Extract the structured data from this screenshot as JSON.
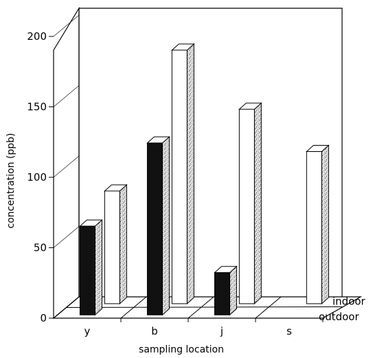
{
  "chart_data": {
    "type": "bar",
    "title": "",
    "xlabel": "sampling location",
    "ylabel": "concentration (ppb)",
    "ylim": [
      0,
      200
    ],
    "yticks": [
      "0",
      "50",
      "100",
      "150",
      "200"
    ],
    "categories": [
      "y",
      "b",
      "j",
      "s"
    ],
    "depth_labels": [
      "indoor",
      "outdoor"
    ],
    "series": [
      {
        "name": "outdoor",
        "values": [
          63,
          122,
          30,
          null
        ]
      },
      {
        "name": "indoor",
        "values": [
          80,
          180,
          138,
          108
        ]
      }
    ],
    "colors": {
      "outdoor": "#111111",
      "indoor": "#ffffff",
      "shaded": "#d9d9d9"
    },
    "grid": false,
    "style": "3d-bars"
  }
}
